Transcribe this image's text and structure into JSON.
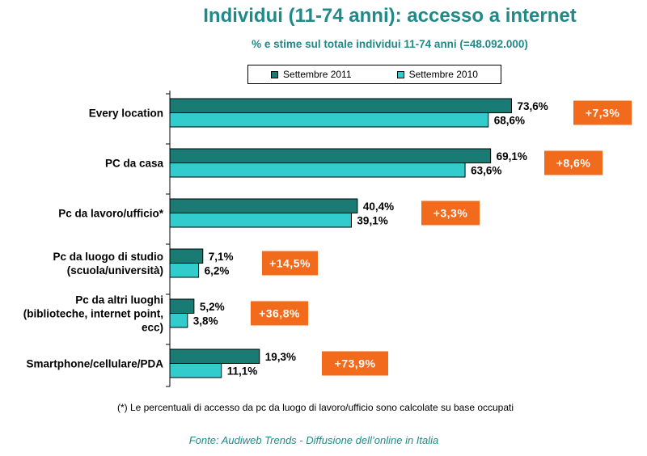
{
  "header": {
    "title": "Individui (11-74 anni): accesso  a internet",
    "subtitle": "% e stime sul totale individui  11-74 anni (=48.092.000)"
  },
  "legend": {
    "items": [
      {
        "label": "Settembre 2011",
        "color": "#1a7a74"
      },
      {
        "label": "Settembre 2010",
        "color": "#33cccc"
      }
    ]
  },
  "chart_data": {
    "type": "bar",
    "orientation": "horizontal",
    "categories": [
      [
        "Every location"
      ],
      [
        "PC da casa"
      ],
      [
        "Pc da lavoro/ufficio*"
      ],
      [
        "Pc da luogo di studio",
        "(scuola/università)"
      ],
      [
        "Pc da altri luoghi",
        "(biblioteche, internet point,",
        "ecc)"
      ],
      [
        "Smartphone/cellulare/PDA"
      ]
    ],
    "series": [
      {
        "name": "Settembre 2011",
        "values": [
          73.6,
          69.1,
          40.4,
          7.1,
          5.2,
          19.3
        ],
        "labels": [
          "73,6%",
          "69,1%",
          "40,4%",
          "7,1%",
          "5,2%",
          "19,3%"
        ],
        "color": "#1a7a74"
      },
      {
        "name": "Settembre 2010",
        "values": [
          68.6,
          63.6,
          39.1,
          6.2,
          3.8,
          11.1
        ],
        "labels": [
          "68,6%",
          "63,6%",
          "39,1%",
          "6,2%",
          "3,8%",
          "11,1%"
        ],
        "color": "#33cccc"
      }
    ],
    "changes": [
      "+7,3%",
      "+8,6%",
      "+3,3%",
      "+14,5%",
      "+36,8%",
      "+73,9%"
    ],
    "change_color": "#f26a1b",
    "xlim": [
      0,
      100
    ],
    "grid": false,
    "legend_position": "top"
  },
  "footer": {
    "note": "(*) Le percentuali di accesso da pc da luogo di lavoro/ufficio sono calcolate su base occupati",
    "source": "Fonte: Audiweb Trends - Diffusione dell’online in Italia"
  }
}
